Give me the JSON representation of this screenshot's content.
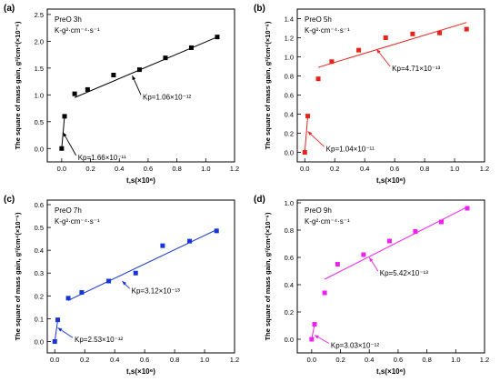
{
  "chart_data": [
    {
      "panel_label": "(a)",
      "type": "scatter",
      "color": "#000000",
      "title_lines": [
        "PreO 3h",
        "K-g²·cm⁻⁴·s⁻¹"
      ],
      "xlabel": "t,s(×10⁶)",
      "ylabel": "The square of mass gain, g²/cm⁴(×10⁻⁶)",
      "xlim": [
        -0.1,
        1.2
      ],
      "ylim": [
        -0.25,
        2.6
      ],
      "xticks": [
        "0.0",
        "0.2",
        "0.4",
        "0.6",
        "0.8",
        "1.0",
        "1.2"
      ],
      "xtick_values": [
        0.0,
        0.2,
        0.4,
        0.6,
        0.8,
        1.0,
        1.2
      ],
      "yticks": [
        "0.0",
        "0.5",
        "1.0",
        "1.5",
        "2.0",
        "2.5"
      ],
      "ytick_values": [
        0.0,
        0.5,
        1.0,
        1.5,
        2.0,
        2.5
      ],
      "points": [
        {
          "x": 0.0,
          "y": 0.0
        },
        {
          "x": 0.02,
          "y": 0.6
        },
        {
          "x": 0.09,
          "y": 1.02
        },
        {
          "x": 0.18,
          "y": 1.1
        },
        {
          "x": 0.36,
          "y": 1.37
        },
        {
          "x": 0.54,
          "y": 1.47
        },
        {
          "x": 0.72,
          "y": 1.69
        },
        {
          "x": 0.9,
          "y": 1.88
        },
        {
          "x": 1.08,
          "y": 2.08
        }
      ],
      "fits": [
        {
          "x0": 0.09,
          "y0": 0.95,
          "x1": 1.08,
          "y1": 2.08
        },
        {
          "x0": 0.0,
          "y0": 0.0,
          "x1": 0.02,
          "y1": 0.6
        }
      ],
      "annotations": [
        {
          "text": "Kp=1.06×10⁻¹²",
          "tx": 0.55,
          "ty": 0.95,
          "ax": 0.49,
          "ay": 1.36
        },
        {
          "text": "Kp=1.66×10⁻¹¹",
          "tx": 0.1,
          "ty": -0.18,
          "ax": 0.01,
          "ay": 0.3
        }
      ]
    },
    {
      "panel_label": "(b)",
      "type": "scatter",
      "color": "#e8231b",
      "title_lines": [
        "PreO 5h",
        "K-g²·cm⁻⁴·s⁻¹"
      ],
      "xlabel": "t,s(×10⁶)",
      "ylabel": "The square of mass gain, g²/cm⁴(×10⁻⁶)",
      "xlim": [
        -0.05,
        1.2
      ],
      "ylim": [
        -0.1,
        1.5
      ],
      "xticks": [
        "0.0",
        "0.2",
        "0.4",
        "0.6",
        "0.8",
        "1.0",
        "1.2"
      ],
      "xtick_values": [
        0.0,
        0.2,
        0.4,
        0.6,
        0.8,
        1.0,
        1.2
      ],
      "yticks": [
        "0.0",
        "0.2",
        "0.4",
        "0.6",
        "0.8",
        "1.0",
        "1.2",
        "1.4"
      ],
      "ytick_values": [
        0.0,
        0.2,
        0.4,
        0.6,
        0.8,
        1.0,
        1.2,
        1.4
      ],
      "points": [
        {
          "x": 0.0,
          "y": 0.0
        },
        {
          "x": 0.02,
          "y": 0.38
        },
        {
          "x": 0.09,
          "y": 0.77
        },
        {
          "x": 0.18,
          "y": 0.95
        },
        {
          "x": 0.36,
          "y": 1.07
        },
        {
          "x": 0.54,
          "y": 1.2
        },
        {
          "x": 0.72,
          "y": 1.24
        },
        {
          "x": 0.9,
          "y": 1.25
        },
        {
          "x": 1.08,
          "y": 1.29
        }
      ],
      "fits": [
        {
          "x0": 0.09,
          "y0": 0.89,
          "x1": 1.08,
          "y1": 1.36
        },
        {
          "x0": 0.0,
          "y0": 0.0,
          "x1": 0.02,
          "y1": 0.38
        }
      ],
      "annotations": [
        {
          "text": "Kp=4.71×10⁻¹³",
          "tx": 0.57,
          "ty": 0.87,
          "ax": 0.48,
          "ay": 1.08
        },
        {
          "text": "Kp=1.04×10⁻¹¹",
          "tx": 0.13,
          "ty": 0.03,
          "ax": 0.02,
          "ay": 0.22
        }
      ]
    },
    {
      "panel_label": "(c)",
      "type": "scatter",
      "color": "#1535d6",
      "title_lines": [
        "PreO 7h",
        "K-g²·cm⁻⁴·s⁻¹"
      ],
      "xlabel": "t,s(×10⁶)",
      "ylabel": "The square of mass gain, g²/cm⁴(×10⁻⁶)",
      "xlim": [
        -0.05,
        1.2
      ],
      "ylim": [
        -0.05,
        0.62
      ],
      "xticks": [
        "0.0",
        "0.2",
        "0.4",
        "0.6",
        "0.8",
        "1.0",
        "1.2"
      ],
      "xtick_values": [
        0.0,
        0.2,
        0.4,
        0.6,
        0.8,
        1.0,
        1.2
      ],
      "yticks": [
        "0.0",
        "0.1",
        "0.2",
        "0.3",
        "0.4",
        "0.5",
        "0.6"
      ],
      "ytick_values": [
        0.0,
        0.1,
        0.2,
        0.3,
        0.4,
        0.5,
        0.6
      ],
      "points": [
        {
          "x": 0.0,
          "y": 0.0
        },
        {
          "x": 0.02,
          "y": 0.095
        },
        {
          "x": 0.09,
          "y": 0.19
        },
        {
          "x": 0.18,
          "y": 0.215
        },
        {
          "x": 0.36,
          "y": 0.265
        },
        {
          "x": 0.54,
          "y": 0.3
        },
        {
          "x": 0.72,
          "y": 0.42
        },
        {
          "x": 0.9,
          "y": 0.44
        },
        {
          "x": 1.08,
          "y": 0.485
        }
      ],
      "fits": [
        {
          "x0": 0.09,
          "y0": 0.18,
          "x1": 1.08,
          "y1": 0.49
        },
        {
          "x0": 0.0,
          "y0": 0.0,
          "x1": 0.02,
          "y1": 0.095
        }
      ],
      "annotations": [
        {
          "text": "Kp=3.12×10⁻¹³",
          "tx": 0.5,
          "ty": 0.22,
          "ax": 0.45,
          "ay": 0.265
        },
        {
          "text": "Kp=2.53×10⁻¹²",
          "tx": 0.12,
          "ty": 0.005,
          "ax": 0.02,
          "ay": 0.06
        }
      ]
    },
    {
      "panel_label": "(d)",
      "type": "scatter",
      "color": "#ee22ee",
      "title_lines": [
        "PreO 9h",
        "K-g²·cm⁻⁴·s⁻¹"
      ],
      "xlabel": "t,s(×10⁶)",
      "ylabel": "The square of mass gain, g²/cm⁴(×10⁻⁶)",
      "xlim": [
        -0.1,
        1.2
      ],
      "ylim": [
        -0.1,
        1.02
      ],
      "xticks": [
        "0.0",
        "0.2",
        "0.4",
        "0.6",
        "0.8",
        "1.0",
        "1.2"
      ],
      "xtick_values": [
        0.0,
        0.2,
        0.4,
        0.6,
        0.8,
        1.0,
        1.2
      ],
      "yticks": [
        "0.0",
        "0.2",
        "0.4",
        "0.6",
        "0.8",
        "1.0"
      ],
      "ytick_values": [
        0.0,
        0.2,
        0.4,
        0.6,
        0.8,
        1.0
      ],
      "points": [
        {
          "x": 0.0,
          "y": 0.0
        },
        {
          "x": 0.02,
          "y": 0.11
        },
        {
          "x": 0.09,
          "y": 0.34
        },
        {
          "x": 0.18,
          "y": 0.55
        },
        {
          "x": 0.36,
          "y": 0.62
        },
        {
          "x": 0.54,
          "y": 0.72
        },
        {
          "x": 0.72,
          "y": 0.79
        },
        {
          "x": 0.9,
          "y": 0.86
        },
        {
          "x": 1.08,
          "y": 0.96
        }
      ],
      "fits": [
        {
          "x0": 0.09,
          "y0": 0.44,
          "x1": 1.08,
          "y1": 0.97
        },
        {
          "x0": 0.0,
          "y0": 0.0,
          "x1": 0.02,
          "y1": 0.11
        }
      ],
      "annotations": [
        {
          "text": "Kp=5.42×10⁻¹³",
          "tx": 0.46,
          "ty": 0.48,
          "ax": 0.4,
          "ay": 0.6
        },
        {
          "text": "Kp=3.03×10⁻¹²",
          "tx": 0.12,
          "ty": -0.05,
          "ax": 0.02,
          "ay": 0.03
        }
      ]
    }
  ]
}
